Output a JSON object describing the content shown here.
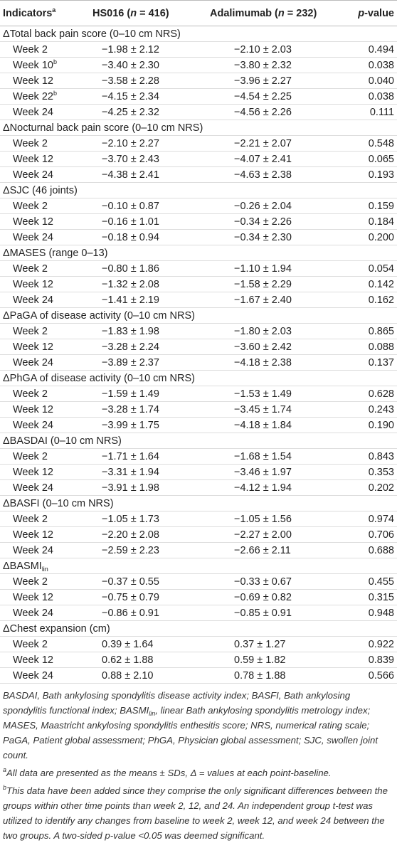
{
  "table": {
    "columns": [
      {
        "label": "Indicators",
        "sup": "a"
      },
      {
        "pre": "HS016 (",
        "em": "n",
        "post": " = 416)"
      },
      {
        "pre": "Adalimumab (",
        "em": "n",
        "post": " = 232)"
      },
      {
        "pre": "",
        "em": "p",
        "post": "-value"
      }
    ],
    "groups": [
      {
        "title": "ΔTotal back pain score (0–10 cm NRS)",
        "rows": [
          {
            "label": "Week 2",
            "hs": "−1.98 ± 2.12",
            "ada": "−2.10 ± 2.03",
            "p": "0.494"
          },
          {
            "label": "Week 10",
            "sup": "b",
            "hs": "−3.40 ± 2.30",
            "ada": "−3.80 ± 2.32",
            "p": "0.038"
          },
          {
            "label": "Week 12",
            "hs": "−3.58 ± 2.28",
            "ada": "−3.96 ± 2.27",
            "p": "0.040"
          },
          {
            "label": "Week 22",
            "sup": "b",
            "hs": "−4.15 ± 2.34",
            "ada": "−4.54 ± 2.25",
            "p": "0.038"
          },
          {
            "label": "Week 24",
            "hs": "−4.25 ± 2.32",
            "ada": "−4.56 ± 2.26",
            "p": "0.111"
          }
        ]
      },
      {
        "title": "ΔNocturnal back pain score (0–10 cm NRS)",
        "rows": [
          {
            "label": "Week 2",
            "hs": "−2.10 ± 2.27",
            "ada": "−2.21 ± 2.07",
            "p": "0.548"
          },
          {
            "label": "Week 12",
            "hs": "−3.70 ± 2.43",
            "ada": "−4.07 ± 2.41",
            "p": "0.065"
          },
          {
            "label": "Week 24",
            "hs": "−4.38 ± 2.41",
            "ada": "−4.63 ± 2.38",
            "p": "0.193"
          }
        ]
      },
      {
        "title": "ΔSJC (46 joints)",
        "rows": [
          {
            "label": "Week 2",
            "hs": "−0.10 ± 0.87",
            "ada": "−0.26 ± 2.04",
            "p": "0.159"
          },
          {
            "label": "Week 12",
            "hs": "−0.16 ± 1.01",
            "ada": "−0.34 ± 2.26",
            "p": "0.184"
          },
          {
            "label": "Week 24",
            "hs": "−0.18 ± 0.94",
            "ada": "−0.34 ± 2.30",
            "p": "0.200"
          }
        ]
      },
      {
        "title": "ΔMASES (range 0–13)",
        "rows": [
          {
            "label": "Week 2",
            "hs": "−0.80 ± 1.86",
            "ada": "−1.10 ± 1.94",
            "p": "0.054"
          },
          {
            "label": "Week 12",
            "hs": "−1.32 ± 2.08",
            "ada": "−1.58 ± 2.29",
            "p": "0.142"
          },
          {
            "label": "Week 24",
            "hs": "−1.41 ± 2.19",
            "ada": "−1.67 ± 2.40",
            "p": "0.162"
          }
        ]
      },
      {
        "title": "ΔPaGA of disease activity (0–10 cm NRS)",
        "rows": [
          {
            "label": "Week 2",
            "hs": "−1.83 ± 1.98",
            "ada": "−1.80 ± 2.03",
            "p": "0.865"
          },
          {
            "label": "Week 12",
            "hs": "−3.28 ± 2.24",
            "ada": "−3.60 ± 2.42",
            "p": "0.088"
          },
          {
            "label": "Week 24",
            "hs": "−3.89 ± 2.37",
            "ada": "−4.18 ± 2.38",
            "p": "0.137"
          }
        ]
      },
      {
        "title": "ΔPhGA of disease activity (0–10 cm NRS)",
        "rows": [
          {
            "label": "Week 2",
            "hs": "−1.59 ± 1.49",
            "ada": "−1.53 ± 1.49",
            "p": "0.628"
          },
          {
            "label": "Week 12",
            "hs": "−3.28 ± 1.74",
            "ada": "−3.45 ± 1.74",
            "p": "0.243"
          },
          {
            "label": "Week 24",
            "hs": "−3.99 ± 1.75",
            "ada": "−4.18 ± 1.84",
            "p": "0.190"
          }
        ]
      },
      {
        "title": "ΔBASDAI (0–10 cm NRS)",
        "rows": [
          {
            "label": "Week 2",
            "hs": "−1.71 ± 1.64",
            "ada": "−1.68 ± 1.54",
            "p": "0.843"
          },
          {
            "label": "Week 12",
            "hs": "−3.31 ± 1.94",
            "ada": "−3.46 ± 1.97",
            "p": "0.353"
          },
          {
            "label": "Week 24",
            "hs": "−3.91 ± 1.98",
            "ada": "−4.12 ± 1.94",
            "p": "0.202"
          }
        ]
      },
      {
        "title": "ΔBASFI (0–10 cm NRS)",
        "rows": [
          {
            "label": "Week 2",
            "hs": "−1.05 ± 1.73",
            "ada": "−1.05 ± 1.56",
            "p": "0.974"
          },
          {
            "label": "Week 12",
            "hs": "−2.20 ± 2.08",
            "ada": "−2.27 ± 2.00",
            "p": "0.706"
          },
          {
            "label": "Week 24",
            "hs": "−2.59 ± 2.23",
            "ada": "−2.66 ± 2.11",
            "p": "0.688"
          }
        ]
      },
      {
        "title": "ΔBASMI",
        "sub": "lin",
        "rows": [
          {
            "label": "Week 2",
            "hs": "−0.37 ± 0.55",
            "ada": "−0.33 ± 0.67",
            "p": "0.455"
          },
          {
            "label": "Week 12",
            "hs": "−0.75 ± 0.79",
            "ada": "−0.69 ± 0.82",
            "p": "0.315"
          },
          {
            "label": "Week 24",
            "hs": "−0.86 ± 0.91",
            "ada": "−0.85 ± 0.91",
            "p": "0.948"
          }
        ]
      },
      {
        "title": "ΔChest expansion (cm)",
        "rows": [
          {
            "label": "Week 2",
            "hs": "0.39 ± 1.64",
            "ada": "0.37 ± 1.27",
            "p": "0.922"
          },
          {
            "label": "Week 12",
            "hs": "0.62 ± 1.88",
            "ada": "0.59 ± 1.82",
            "p": "0.839"
          },
          {
            "label": "Week 24",
            "hs": "0.88 ± 2.10",
            "ada": "0.78 ± 1.88",
            "p": "0.566"
          }
        ]
      }
    ]
  },
  "footnotes": {
    "abbrev_pre": "BASDAI, Bath ankylosing spondylitis disease activity index; BASFI, Bath ankylosing spondylitis functional index; BASMI",
    "abbrev_sub": "lin",
    "abbrev_post": ", linear Bath ankylosing spondylitis metrology index; MASES, Maastricht ankylosing spondylitis enthesitis score; NRS, numerical rating scale; PaGA, Patient global assessment; PhGA, Physician global assessment; SJC, swollen joint count.",
    "a_mark": "a",
    "a_text": "All data are presented as the means ± SDs, Δ = values at each point-baseline.",
    "b_mark": "b",
    "b_text": "This data have been added since they comprise the only significant differences between the groups within other time points than week 2, 12, and 24. An independent group t-test was utilized to identify any changes from baseline to week 2, week 12, and week 24 between the two groups. A two-sided p-value <0.05 was deemed significant."
  }
}
